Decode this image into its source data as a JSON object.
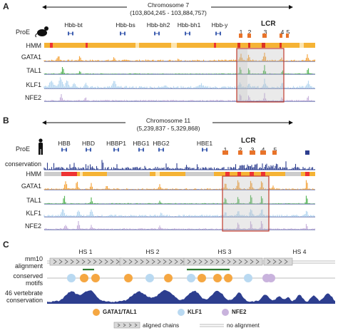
{
  "panels": {
    "a": "A",
    "b": "B",
    "c": "C"
  },
  "panelA": {
    "chromosome": "Chromosome 7",
    "range": "(103,804,245 - 103,884,757)",
    "cell": "ProE",
    "genes": [
      "Hbb-bt",
      "Hbb-bs",
      "Hbb-bh2",
      "Hbb-bh1",
      "Hbb-y"
    ],
    "lcr": "LCR",
    "hs": [
      "1",
      "2",
      "3",
      "4",
      "5"
    ],
    "tracks": [
      "HMM",
      "GATA1",
      "TAL1",
      "KLF1",
      "NFE2"
    ]
  },
  "panelB": {
    "chromosome": "Chromosome 11",
    "range": "(5,239,837 - 5,329,868)",
    "cell": "ProE",
    "genes": [
      "HBB",
      "HBD",
      "HBBP1",
      "HBG1",
      "HBG2",
      "HBE1"
    ],
    "lcr": "LCR",
    "hs": [
      "1",
      "2",
      "3",
      "4",
      "5"
    ],
    "tracks": [
      "conservation",
      "HMM",
      "GATA1",
      "TAL1",
      "KLF1",
      "NFE2"
    ]
  },
  "panelC": {
    "hs_labels": [
      "HS 1",
      "HS 2",
      "HS 3",
      "HS 4"
    ],
    "row1": [
      "mm10",
      "alignment"
    ],
    "row2": [
      "conserved",
      "motifs"
    ],
    "row3": [
      "46 vertebrate",
      "conservation"
    ]
  },
  "legend": {
    "gata1": "GATA1/TAL1",
    "klf1": "KLF1",
    "nfe2": "NFE2",
    "aligned": "aligned chains",
    "noalign": "no alignment",
    "colors": {
      "gata1": "#f5a742",
      "klf1": "#b9d9f1",
      "nfe2": "#c9b3dd",
      "tal1": "#5cb85c",
      "track": "#2d3e8f",
      "lcrbox": "#c0392b"
    }
  }
}
